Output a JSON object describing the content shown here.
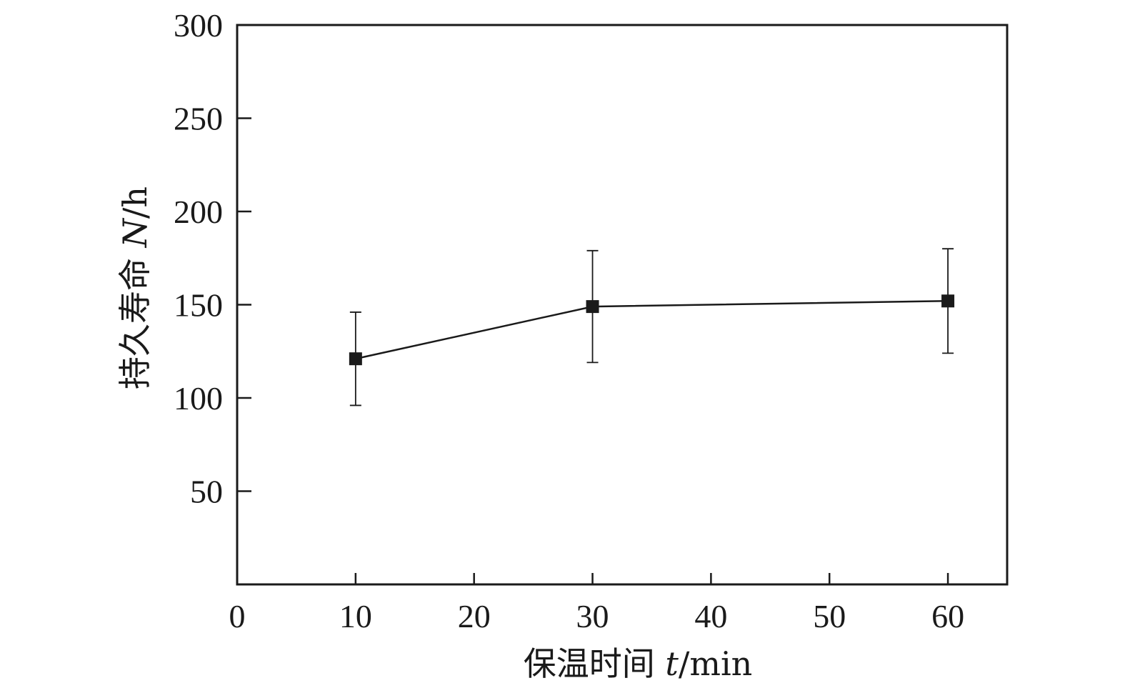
{
  "chart_data": {
    "type": "line",
    "title": "",
    "xlabel": {
      "prefix": "保温时间 ",
      "var": "t",
      "suffix": "/min"
    },
    "ylabel": {
      "prefix": "持久寿命 ",
      "var": "N",
      "suffix": "/h"
    },
    "xlim": [
      0,
      65
    ],
    "ylim": [
      0,
      300
    ],
    "xticks": [
      0,
      10,
      20,
      30,
      40,
      50,
      60
    ],
    "yticks": [
      50,
      100,
      150,
      200,
      250,
      300
    ],
    "grid": false,
    "marker": "square",
    "series": [
      {
        "x": [
          10,
          30,
          60
        ],
        "y": [
          121,
          149,
          152
        ],
        "yerr_low": [
          96,
          119,
          124
        ],
        "yerr_high": [
          146,
          179,
          180
        ],
        "color": "#1a1a1a"
      }
    ]
  }
}
